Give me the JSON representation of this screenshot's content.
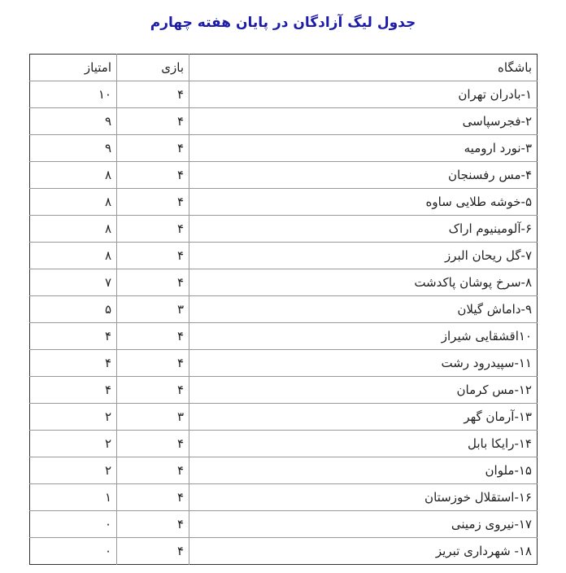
{
  "title": "جدول لیگ آزادگان در پایان هفته چهارم",
  "headers": {
    "club": "باشگاه",
    "games": "بازی",
    "points": "امتیاز"
  },
  "rows": [
    {
      "club": "۱-بادران تهران",
      "games": "۴",
      "points": "۱۰"
    },
    {
      "club": "۲-فجرسپاسی",
      "games": "۴",
      "points": "۹"
    },
    {
      "club": "۳-نورد ارومیه",
      "games": "۴",
      "points": "۹"
    },
    {
      "club": "۴-مس رفسنجان",
      "games": "۴",
      "points": "۸"
    },
    {
      "club": "۵-خوشه طلایی ساوه",
      "games": "۴",
      "points": "۸"
    },
    {
      "club": "۶-آلومینیوم اراک",
      "games": "۴",
      "points": "۸"
    },
    {
      "club": "۷-گل ریحان البرز",
      "games": "۴",
      "points": "۸"
    },
    {
      "club": "۸-سرخ پوشان پاکدشت",
      "games": "۴",
      "points": "۷"
    },
    {
      "club": "۹-داماش گیلان",
      "games": "۳",
      "points": "۵"
    },
    {
      "club": "۱۰اقشقایی شیراز",
      "games": "۴",
      "points": "۴"
    },
    {
      "club": "۱۱-سپیدرود رشت",
      "games": "۴",
      "points": "۴"
    },
    {
      "club": "۱۲-مس کرمان",
      "games": "۴",
      "points": "۴"
    },
    {
      "club": "۱۳-آرمان گهر",
      "games": "۳",
      "points": "۲"
    },
    {
      "club": "۱۴-رایکا بابل",
      "games": "۴",
      "points": "۲"
    },
    {
      "club": "۱۵-ملوان",
      "games": "۴",
      "points": "۲"
    },
    {
      "club": "۱۶-استقلال خوزستان",
      "games": "۴",
      "points": "۱"
    },
    {
      "club": "۱۷-نیروی زمینی",
      "games": "۴",
      "points": "۰"
    },
    {
      "club": "۱۸- شهرداری تبریز",
      "games": "۴",
      "points": "۰"
    }
  ]
}
